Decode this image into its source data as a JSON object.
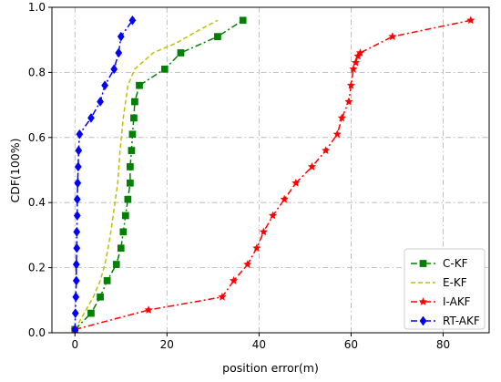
{
  "chart_data": {
    "type": "line",
    "title": "",
    "xlabel": "position error(m)",
    "ylabel": "CDF(100%)",
    "xlim": [
      -5,
      90
    ],
    "ylim": [
      0,
      1.0
    ],
    "xticks": [
      0,
      20,
      40,
      60,
      80
    ],
    "yticks": [
      0.0,
      0.2,
      0.4,
      0.6,
      0.8,
      1.0
    ],
    "xtick_labels": [
      "0",
      "20",
      "40",
      "60",
      "80"
    ],
    "ytick_labels": [
      "0.0",
      "0.2",
      "0.4",
      "0.6",
      "0.8",
      "1.0"
    ],
    "grid": true,
    "legend_position": "bottom-right",
    "series": [
      {
        "name": "C-KF",
        "color": "#008000",
        "line_style": "dash-dot",
        "marker": "square",
        "x": [
          0,
          3.5,
          5.5,
          7,
          9,
          10,
          10.5,
          11,
          11.5,
          12,
          12,
          12.3,
          12.5,
          12.8,
          13,
          14,
          19.5,
          23,
          31,
          36.5
        ],
        "y": [
          0.01,
          0.06,
          0.11,
          0.16,
          0.21,
          0.26,
          0.31,
          0.36,
          0.41,
          0.46,
          0.51,
          0.56,
          0.61,
          0.66,
          0.71,
          0.76,
          0.81,
          0.86,
          0.91,
          0.96
        ]
      },
      {
        "name": "E-KF",
        "color": "#bfbf00",
        "line_style": "dashed",
        "marker": "none",
        "x": [
          0,
          2,
          4,
          5.5,
          6.5,
          7.2,
          7.8,
          8.3,
          8.8,
          9.3,
          9.8,
          10.5,
          11.5,
          13,
          17,
          22,
          27,
          31
        ],
        "y": [
          0.01,
          0.06,
          0.11,
          0.16,
          0.21,
          0.26,
          0.31,
          0.36,
          0.41,
          0.46,
          0.56,
          0.66,
          0.76,
          0.81,
          0.86,
          0.89,
          0.93,
          0.96
        ]
      },
      {
        "name": "I-AKF",
        "color": "#ff0000",
        "line_style": "dash-dot",
        "marker": "star",
        "x": [
          0,
          16,
          32,
          34.5,
          37.5,
          39.5,
          41,
          43,
          45.5,
          48,
          51.5,
          54.5,
          57,
          58,
          59.5,
          60,
          60.5,
          61,
          61.5,
          62,
          69,
          86
        ],
        "y": [
          0.01,
          0.07,
          0.11,
          0.16,
          0.21,
          0.26,
          0.31,
          0.36,
          0.41,
          0.46,
          0.51,
          0.56,
          0.61,
          0.66,
          0.71,
          0.76,
          0.81,
          0.83,
          0.85,
          0.86,
          0.91,
          0.96
        ]
      },
      {
        "name": "RT-AKF",
        "color": "#0000ff",
        "line_style": "dash-dot",
        "marker": "diamond",
        "x": [
          0,
          0.1,
          0.2,
          0.3,
          0.3,
          0.4,
          0.4,
          0.5,
          0.5,
          0.6,
          0.7,
          0.8,
          1.0,
          3.5,
          5.5,
          6.5,
          8.5,
          9.5,
          10,
          12.5
        ],
        "y": [
          0.01,
          0.06,
          0.11,
          0.16,
          0.21,
          0.26,
          0.31,
          0.36,
          0.41,
          0.46,
          0.51,
          0.56,
          0.61,
          0.66,
          0.71,
          0.76,
          0.81,
          0.86,
          0.91,
          0.96
        ]
      }
    ]
  }
}
